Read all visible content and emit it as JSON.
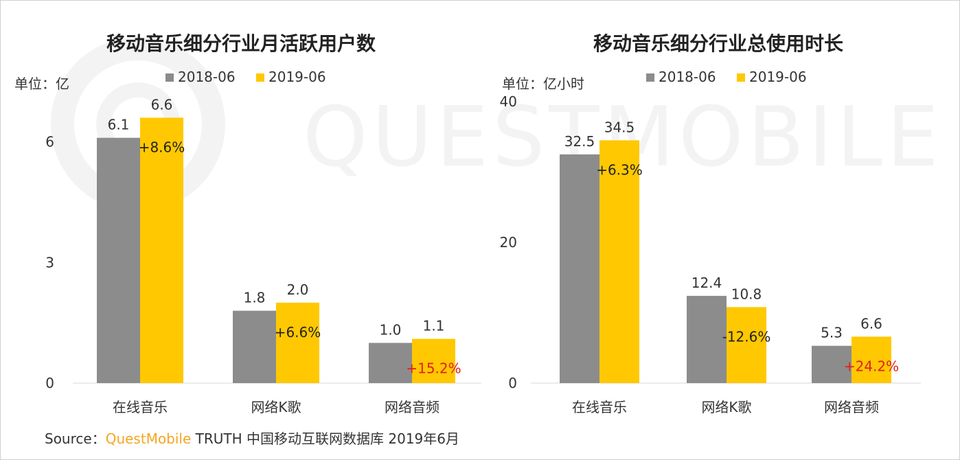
{
  "watermark": "QUESTMOBILE",
  "legend": {
    "series1": "2018-06",
    "series2": "2019-06"
  },
  "colors": {
    "series1": "#8c8c8c",
    "series2": "#ffc800",
    "negative_growth": "#e0201a",
    "brand": "#f5a623"
  },
  "source": {
    "prefix": "Source：",
    "brand": "QuestMobile",
    "rest": " TRUTH 中国移动互联网数据库 2019年6月"
  },
  "chart_data": [
    {
      "type": "bar",
      "title": "移动音乐细分行业月活跃用户数",
      "unit_label": "单位：亿",
      "categories": [
        "在线音乐",
        "网络K歌",
        "网络音频"
      ],
      "series": [
        {
          "name": "2018-06",
          "values": [
            6.1,
            1.8,
            1.0
          ],
          "labels": [
            "6.1",
            "1.8",
            "1.0"
          ]
        },
        {
          "name": "2019-06",
          "values": [
            6.6,
            2.0,
            1.1
          ],
          "labels": [
            "6.6",
            "2.0",
            "1.1"
          ]
        }
      ],
      "growth": [
        "+8.6%",
        "+6.6%",
        "+15.2%"
      ],
      "growth_highlight": [
        false,
        false,
        true
      ],
      "ylim": [
        0,
        7
      ],
      "yticks": [
        0,
        3,
        6
      ],
      "legend_position": "top"
    },
    {
      "type": "bar",
      "title": "移动音乐细分行业总使用时长",
      "unit_label": "单位：亿小时",
      "categories": [
        "在线音乐",
        "网络K歌",
        "网络音频"
      ],
      "series": [
        {
          "name": "2018-06",
          "values": [
            32.5,
            12.4,
            5.3
          ],
          "labels": [
            "32.5",
            "12.4",
            "5.3"
          ]
        },
        {
          "name": "2019-06",
          "values": [
            34.5,
            10.8,
            6.6
          ],
          "labels": [
            "34.5",
            "10.8",
            "6.6"
          ]
        }
      ],
      "growth": [
        "+6.3%",
        "-12.6%",
        "+24.2%"
      ],
      "growth_highlight": [
        false,
        false,
        true
      ],
      "ylim": [
        0,
        40
      ],
      "yticks": [
        0,
        20,
        40
      ],
      "legend_position": "top"
    }
  ]
}
